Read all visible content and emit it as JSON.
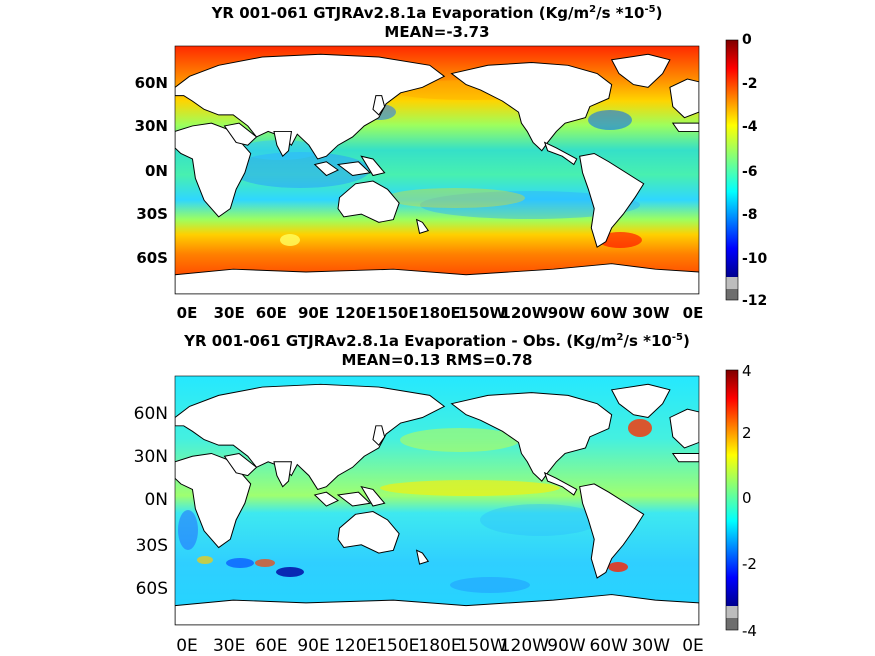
{
  "panels": [
    {
      "id": "top",
      "title_line1_prefix": "YR 001-061 GTJRAv2.8.1a  Evaporation (Kg/m",
      "title_line1_sup1": "2",
      "title_line1_mid": "/s *10",
      "title_line1_sup2": "-5",
      "title_line1_suffix": ")",
      "title_line2": "MEAN=-3.73",
      "lat_ticks": [
        "60N",
        "30N",
        "0N",
        "30S",
        "60S"
      ],
      "lon_ticks": [
        "0E",
        "30E",
        "60E",
        "90E",
        "120E",
        "150E",
        "180E",
        "150W",
        "120W",
        "90W",
        "60W",
        "30W",
        "0E"
      ],
      "colorbar_ticks": [
        "0",
        "-2",
        "-4",
        "-6",
        "-8",
        "-10",
        "-12"
      ],
      "colorbar_range": [
        -12,
        0
      ],
      "colormap": "jet"
    },
    {
      "id": "bottom",
      "title_line1_prefix": "YR 001-061 GTJRAv2.8.1a Evaporation - Obs. (Kg/m",
      "title_line1_sup1": "2",
      "title_line1_mid": "/s *10",
      "title_line1_sup2": "-5",
      "title_line1_suffix": ")",
      "title_line2": "MEAN=0.13   RMS=0.78",
      "lat_ticks": [
        "60N",
        "30N",
        "0N",
        "30S",
        "60S"
      ],
      "lon_ticks": [
        "0E",
        "30E",
        "60E",
        "90E",
        "120E",
        "150E",
        "180E",
        "150W",
        "120W",
        "90W",
        "60W",
        "30W",
        "0E"
      ],
      "colorbar_ticks": [
        "4",
        "2",
        "0",
        "-2",
        "-4"
      ],
      "colorbar_range": [
        -4,
        4
      ],
      "colormap": "jet"
    }
  ]
}
